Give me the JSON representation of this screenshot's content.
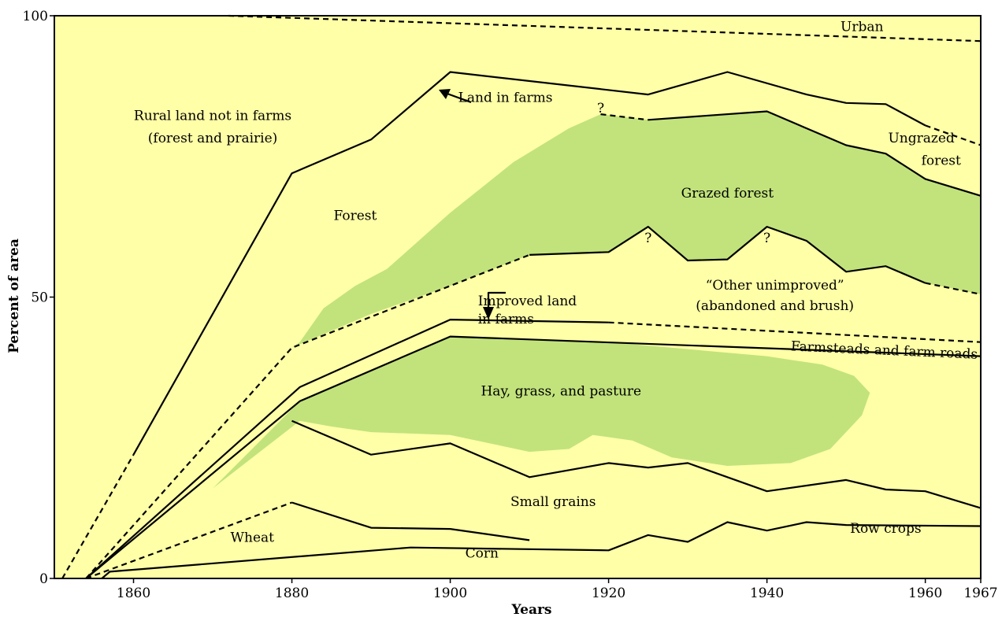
{
  "chart_data": {
    "type": "area",
    "title": "",
    "xlabel": "Years",
    "ylabel": "Percent of area",
    "xlim": [
      1850,
      1967
    ],
    "ylim": [
      0,
      100
    ],
    "x_ticks": [
      {
        "value": 1860,
        "label": "1860"
      },
      {
        "value": 1880,
        "label": "1880"
      },
      {
        "value": 1900,
        "label": "1900"
      },
      {
        "value": 1920,
        "label": "1920"
      },
      {
        "value": 1940,
        "label": "1940"
      },
      {
        "value": 1960,
        "label": "1960"
      },
      {
        "value": 1967,
        "label": "1967"
      }
    ],
    "y_ticks": [
      {
        "value": 0,
        "label": "0"
      },
      {
        "value": 50,
        "label": "50"
      },
      {
        "value": 100,
        "label": "100"
      }
    ],
    "grid": false,
    "colors": {
      "background": "#ffffa8",
      "green": "#c2e37c",
      "line": "#000000"
    },
    "lines": [
      {
        "id": "land-in-farms",
        "segments": [
          {
            "style": "dashed",
            "points": [
              [
                1851,
                0
              ],
              [
                1860,
                22
              ]
            ]
          },
          {
            "style": "solid",
            "points": [
              [
                1860,
                22
              ],
              [
                1880,
                72
              ],
              [
                1890,
                78
              ],
              [
                1900,
                90
              ],
              [
                1925,
                86
              ],
              [
                1935,
                90
              ],
              [
                1945,
                86
              ],
              [
                1950,
                84.5
              ],
              [
                1955,
                84.3
              ],
              [
                1960,
                80.5
              ]
            ]
          },
          {
            "style": "dashed",
            "points": [
              [
                1960,
                80.5
              ],
              [
                1967,
                77
              ]
            ]
          }
        ]
      },
      {
        "id": "urban",
        "segments": [
          {
            "style": "dashed",
            "points": [
              [
                1872,
                100
              ],
              [
                1967,
                95.5
              ]
            ]
          }
        ]
      },
      {
        "id": "grazed-forest-top",
        "segments": [
          {
            "style": "dashed",
            "points": [
              [
                1919,
                82.5
              ],
              [
                1925,
                81.5
              ]
            ]
          },
          {
            "style": "solid",
            "points": [
              [
                1925,
                81.5
              ],
              [
                1940,
                83
              ],
              [
                1950,
                77
              ],
              [
                1955,
                75.5
              ],
              [
                1960,
                71
              ],
              [
                1967,
                68
              ]
            ]
          }
        ]
      },
      {
        "id": "grazed-forest-bottom",
        "segments": [
          {
            "style": "dashed",
            "points": [
              [
                1854,
                0
              ],
              [
                1880,
                41
              ],
              [
                1910,
                57.5
              ]
            ]
          },
          {
            "style": "solid",
            "points": [
              [
                1910,
                57.5
              ],
              [
                1920,
                58
              ],
              [
                1925,
                62.5
              ],
              [
                1930,
                56.5
              ],
              [
                1935,
                56.7
              ],
              [
                1940,
                62.5
              ],
              [
                1945,
                60
              ],
              [
                1950,
                54.5
              ],
              [
                1955,
                55.5
              ],
              [
                1960,
                52.5
              ]
            ]
          },
          {
            "style": "dashed",
            "points": [
              [
                1960,
                52.5
              ],
              [
                1967,
                50.5
              ]
            ]
          }
        ]
      },
      {
        "id": "improved-land-in-farms",
        "segments": [
          {
            "style": "solid",
            "points": [
              [
                1854,
                0
              ],
              [
                1881,
                34
              ],
              [
                1900,
                46
              ],
              [
                1920,
                45.5
              ]
            ]
          },
          {
            "style": "dashed",
            "points": [
              [
                1920,
                45.5
              ],
              [
                1967,
                42
              ]
            ]
          }
        ]
      },
      {
        "id": "farmsteads-bottom",
        "segments": [
          {
            "style": "solid",
            "points": [
              [
                1854,
                0
              ],
              [
                1881,
                31.5
              ],
              [
                1900,
                43
              ],
              [
                1967,
                39.5
              ]
            ]
          }
        ]
      },
      {
        "id": "small-grains-top",
        "segments": [
          {
            "style": "solid",
            "points": [
              [
                1880,
                28
              ],
              [
                1890,
                22
              ],
              [
                1900,
                24
              ],
              [
                1910,
                18
              ],
              [
                1920,
                20.5
              ],
              [
                1925,
                19.7
              ],
              [
                1930,
                20.5
              ],
              [
                1940,
                15.5
              ],
              [
                1950,
                17.5
              ],
              [
                1955,
                15.8
              ],
              [
                1960,
                15.5
              ],
              [
                1967,
                12.5
              ]
            ]
          }
        ]
      },
      {
        "id": "wheat-top",
        "segments": [
          {
            "style": "dashed",
            "points": [
              [
                1854,
                0
              ],
              [
                1880,
                13.5
              ]
            ]
          },
          {
            "style": "solid",
            "points": [
              [
                1880,
                13.5
              ],
              [
                1890,
                9
              ],
              [
                1900,
                8.8
              ],
              [
                1910,
                6.8
              ]
            ]
          }
        ]
      },
      {
        "id": "row-crops-top",
        "segments": [
          {
            "style": "solid",
            "points": [
              [
                1856,
                0
              ],
              [
                1857,
                1.2
              ],
              [
                1895,
                5.5
              ],
              [
                1920,
                5
              ],
              [
                1925,
                7.7
              ],
              [
                1930,
                6.5
              ],
              [
                1935,
                10
              ],
              [
                1940,
                8.5
              ],
              [
                1945,
                10
              ],
              [
                1950,
                9.5
              ],
              [
                1967,
                9.3
              ]
            ]
          }
        ]
      }
    ],
    "areas": [
      {
        "id": "grazed-forest-area",
        "points": [
          [
            1880,
            41
          ],
          [
            1890,
            47
          ],
          [
            1900,
            52
          ],
          [
            1910,
            57.5
          ],
          [
            1920,
            58
          ],
          [
            1925,
            62.5
          ],
          [
            1930,
            56.5
          ],
          [
            1935,
            56.7
          ],
          [
            1940,
            62.5
          ],
          [
            1945,
            60
          ],
          [
            1950,
            54.5
          ],
          [
            1955,
            55.5
          ],
          [
            1960,
            52.5
          ],
          [
            1967,
            50.5
          ],
          [
            1967,
            68
          ],
          [
            1960,
            71
          ],
          [
            1955,
            75.5
          ],
          [
            1950,
            77
          ],
          [
            1940,
            83
          ],
          [
            1925,
            81.5
          ],
          [
            1919,
            82.5
          ],
          [
            1915,
            80
          ],
          [
            1908,
            74
          ],
          [
            1900,
            65
          ],
          [
            1892,
            55
          ],
          [
            1888,
            52
          ],
          [
            1884,
            48
          ],
          [
            1881,
            42
          ]
        ]
      },
      {
        "id": "hay-area",
        "points": [
          [
            1856,
            0
          ],
          [
            1870,
            16
          ],
          [
            1881,
            31.5
          ],
          [
            1900,
            43
          ],
          [
            1920,
            42
          ],
          [
            1940,
            39.5
          ],
          [
            1947,
            38
          ],
          [
            1951,
            36
          ],
          [
            1953,
            33
          ],
          [
            1952,
            29
          ],
          [
            1948,
            23
          ],
          [
            1943,
            20.5
          ],
          [
            1935,
            20
          ],
          [
            1928,
            21.5
          ],
          [
            1923,
            24.5
          ],
          [
            1918,
            25.5
          ],
          [
            1915,
            23
          ],
          [
            1910,
            22.5
          ],
          [
            1900,
            25.5
          ],
          [
            1890,
            26
          ],
          [
            1885,
            27
          ],
          [
            1881,
            28
          ],
          [
            1870,
            16
          ],
          [
            1856,
            0
          ]
        ]
      }
    ],
    "annotations": [
      {
        "text": "Urban",
        "x": 1952,
        "y": 97.3,
        "anchor": "middle"
      },
      {
        "text": "Rural land not in farms",
        "x": 1870,
        "y": 81.5,
        "anchor": "middle"
      },
      {
        "text": "(forest and prairie)",
        "x": 1870,
        "y": 77.5,
        "anchor": "middle"
      },
      {
        "text": "Land in farms",
        "x": 1901,
        "y": 84.7,
        "anchor": "start"
      },
      {
        "text": "?",
        "x": 1919,
        "y": 82.8,
        "anchor": "middle"
      },
      {
        "text": "Ungrazed",
        "x": 1959.5,
        "y": 77.5,
        "anchor": "middle"
      },
      {
        "text": "forest",
        "x": 1962,
        "y": 73.5,
        "anchor": "middle"
      },
      {
        "text": "Grazed forest",
        "x": 1935,
        "y": 67.7,
        "anchor": "middle"
      },
      {
        "text": "Forest",
        "x": 1888,
        "y": 63.7,
        "anchor": "middle"
      },
      {
        "text": "?",
        "x": 1925,
        "y": 59.7,
        "anchor": "middle"
      },
      {
        "text": "?",
        "x": 1940,
        "y": 59.7,
        "anchor": "middle"
      },
      {
        "text": "Improved land",
        "x": 1903.5,
        "y": 48.5,
        "anchor": "start"
      },
      {
        "text": "in farms",
        "x": 1903.5,
        "y": 45.3,
        "anchor": "start"
      },
      {
        "text": "“Other unimproved”",
        "x": 1941,
        "y": 51.3,
        "anchor": "middle"
      },
      {
        "text": "(abandoned and brush)",
        "x": 1941,
        "y": 47.7,
        "anchor": "middle"
      },
      {
        "text": "Farmsteads and farm roads",
        "x": 1943,
        "y": 40.5,
        "anchor": "start",
        "angle": 2.5
      },
      {
        "text": "Hay, grass, and pasture",
        "x": 1914,
        "y": 32.5,
        "anchor": "middle"
      },
      {
        "text": "Small grains",
        "x": 1913,
        "y": 12.9,
        "anchor": "middle"
      },
      {
        "text": "Wheat",
        "x": 1875,
        "y": 6.5,
        "anchor": "middle"
      },
      {
        "text": "Row crops",
        "x": 1955,
        "y": 8.1,
        "anchor": "middle"
      },
      {
        "text": "Corn",
        "x": 1904,
        "y": 3.7,
        "anchor": "middle"
      }
    ]
  }
}
